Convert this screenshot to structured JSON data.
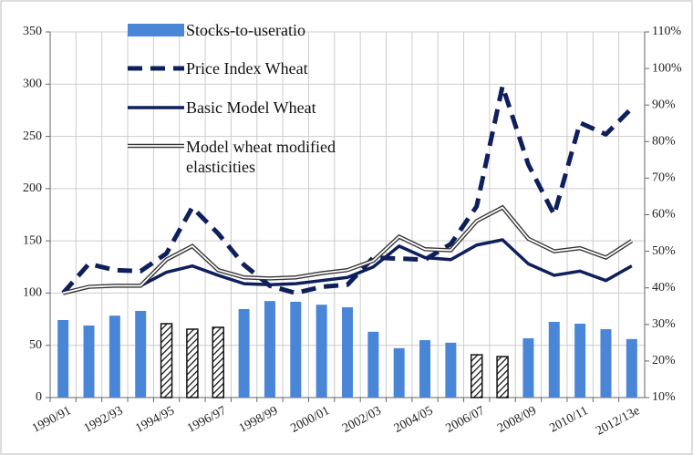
{
  "chart_data": {
    "type": "combo",
    "categories": [
      "1990/91",
      null,
      "1992/93",
      null,
      "1994/95",
      null,
      "1996/97",
      null,
      "1998/99",
      null,
      "2000/01",
      null,
      "2002/03",
      null,
      "2004/05",
      null,
      "2006/07",
      null,
      "2008/09",
      null,
      "2010/11",
      null,
      "2012/13e"
    ],
    "series": [
      {
        "name": "Stocks-to-useratio",
        "type": "bar",
        "axis": "y2",
        "color": "#4a86d8",
        "hatched": [
          false,
          false,
          false,
          false,
          true,
          true,
          true,
          false,
          false,
          false,
          false,
          false,
          false,
          false,
          false,
          false,
          true,
          true,
          false,
          false,
          false,
          false,
          false
        ],
        "values": [
          31.2,
          29.7,
          32.4,
          33.7,
          30.2,
          28.7,
          29.2,
          34.2,
          36.4,
          36.2,
          35.4,
          34.7,
          28,
          23.5,
          25.7,
          25,
          21.7,
          21.2,
          26.2,
          30.7,
          30.2,
          28.7,
          26
        ]
      },
      {
        "name": "Price Index Wheat",
        "type": "line",
        "line_style": "dashed",
        "color": "#0f1f5c",
        "values": [
          100,
          128,
          122,
          121,
          138,
          182,
          157,
          127,
          107,
          100,
          106,
          108,
          134,
          133,
          132,
          147,
          183,
          298,
          223,
          175,
          263,
          252,
          277
        ]
      },
      {
        "name": "Basic Model Wheat",
        "type": "line",
        "line_style": "solid",
        "color": "#0f1f5c",
        "values": [
          100,
          106,
          107,
          107,
          120,
          126,
          117,
          109,
          108,
          109,
          112,
          115,
          125,
          145,
          134,
          132,
          146,
          151,
          128,
          117,
          121,
          112,
          126
        ]
      },
      {
        "name": "Model wheat modified elasticities",
        "type": "line",
        "line_style": "double",
        "color": "#333333",
        "values": [
          100,
          106,
          107,
          107,
          132,
          145,
          122,
          115,
          114,
          115,
          119,
          122,
          131,
          154,
          142,
          141,
          169,
          182,
          152,
          140,
          143,
          134,
          150
        ]
      }
    ],
    "ylim": [
      0,
      350
    ],
    "yticks": [
      0,
      50,
      100,
      150,
      200,
      250,
      300,
      350
    ],
    "y2lim": [
      10,
      110
    ],
    "y2ticks": [
      {
        "value": 10,
        "label": "10%"
      },
      {
        "value": 20,
        "label": "20%"
      },
      {
        "value": 30,
        "label": "30%"
      },
      {
        "value": 40,
        "label": "40%"
      },
      {
        "value": 50,
        "label": "50%"
      },
      {
        "value": 60,
        "label": "60%"
      },
      {
        "value": 70,
        "label": "70%"
      },
      {
        "value": 80,
        "label": "80%"
      },
      {
        "value": 90,
        "label": "90%"
      },
      {
        "value": 100,
        "label": "100%"
      },
      {
        "value": 110,
        "label": "110%"
      }
    ],
    "grid": true,
    "legend": "top"
  }
}
